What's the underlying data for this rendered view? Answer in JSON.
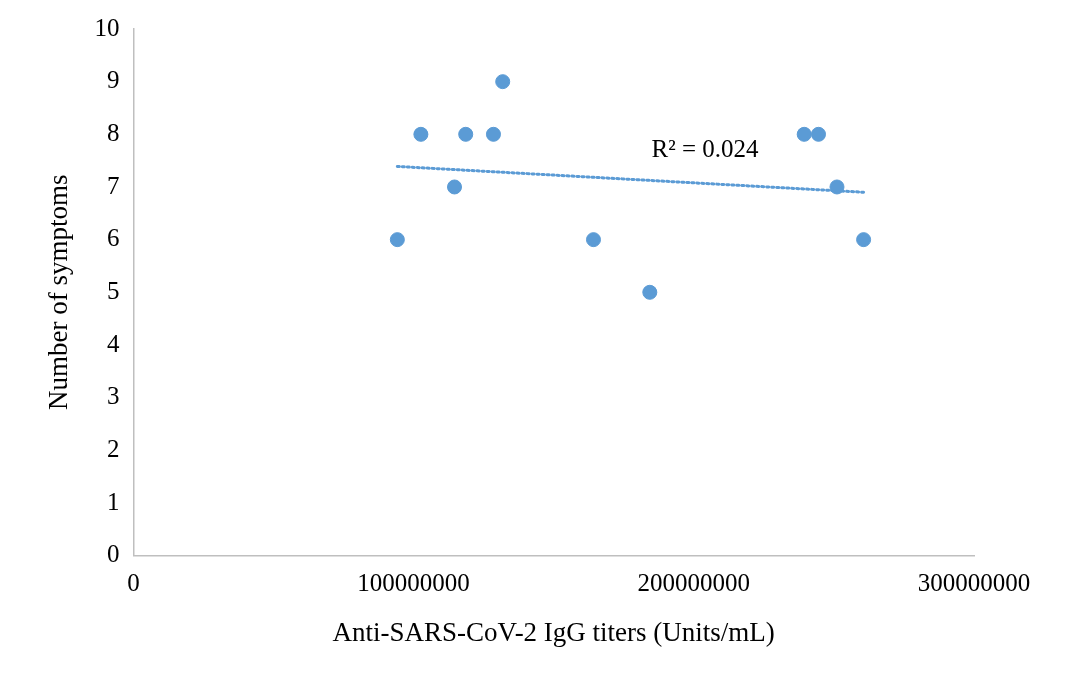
{
  "chart_data": {
    "type": "scatter",
    "xlabel": "Anti-SARS-CoV-2 IgG titers (Units/mL)",
    "ylabel": "Number of symptoms",
    "xlim": [
      0,
      300000000
    ],
    "xticks": [
      0,
      100000000,
      200000000,
      300000000
    ],
    "ylim": [
      0,
      10
    ],
    "yticks": [
      0,
      1,
      2,
      3,
      4,
      5,
      6,
      7,
      8,
      9,
      10
    ],
    "grid": false,
    "legend": false,
    "marker": "circle",
    "series": [
      {
        "color": "#5b9bd5",
        "x": [
          94200000,
          102600000,
          114600000,
          118600000,
          128500000,
          131800000,
          164200000,
          184300000,
          239400000,
          244500000,
          251100000,
          260600000
        ],
        "values": [
          6,
          8,
          7,
          8,
          8,
          9,
          6,
          5,
          8,
          8,
          7,
          6
        ]
      },
      {
        "type": "line",
        "color": "#5b9bd5",
        "line_style": "dotted",
        "marker": "none",
        "x": [
          94200000,
          260600000
        ],
        "values": [
          7.39,
          6.9
        ]
      }
    ],
    "annotations": [
      "R² = 0.024"
    ]
  }
}
